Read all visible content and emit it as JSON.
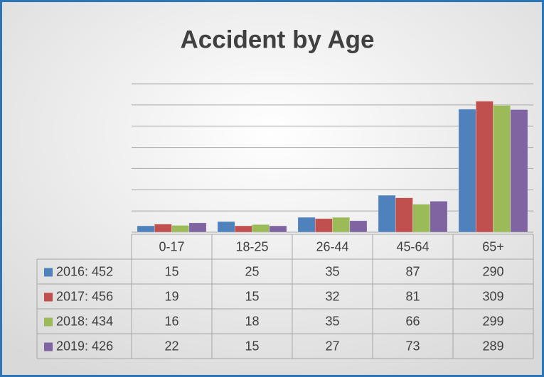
{
  "chart_data": {
    "type": "bar",
    "title": "Accident by Age",
    "categories": [
      "0-17",
      "18-25",
      "26-44",
      "45-64",
      "65+"
    ],
    "series": [
      {
        "name": "2016: 452",
        "color": "#4f81bd",
        "values": [
          15,
          25,
          35,
          87,
          290
        ]
      },
      {
        "name": "2017: 456",
        "color": "#c0504d",
        "values": [
          19,
          15,
          32,
          81,
          309
        ]
      },
      {
        "name": "2018: 434",
        "color": "#9bbb59",
        "values": [
          16,
          18,
          35,
          66,
          299
        ]
      },
      {
        "name": "2019: 426",
        "color": "#8064a2",
        "values": [
          22,
          15,
          27,
          73,
          289
        ]
      }
    ],
    "ylim": [
      0,
      350
    ],
    "yticks": [
      0,
      50,
      100,
      150,
      200,
      250,
      300,
      350
    ],
    "grid": true
  }
}
